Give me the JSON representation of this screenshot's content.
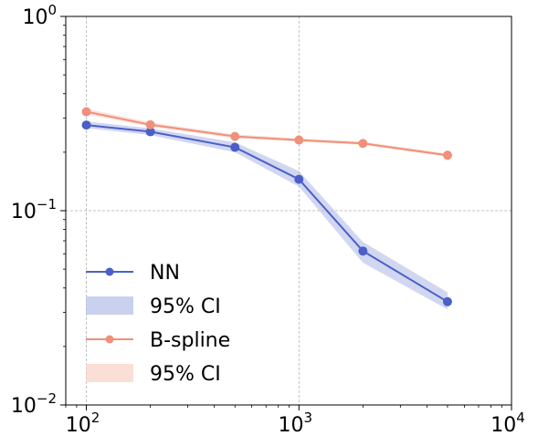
{
  "chart_data": {
    "type": "line",
    "xscale": "log",
    "yscale": "log",
    "xlim": [
      80,
      10000
    ],
    "ylim": [
      0.01,
      1.0
    ],
    "grid": true,
    "legend_position": "lower-left",
    "x_ticks": [
      {
        "value": 100,
        "base": "10",
        "exp": "2"
      },
      {
        "value": 1000,
        "base": "10",
        "exp": "3"
      },
      {
        "value": 10000,
        "base": "10",
        "exp": "4"
      }
    ],
    "y_ticks": [
      {
        "value": 0.01,
        "base": "10",
        "exp": "−2"
      },
      {
        "value": 0.1,
        "base": "10",
        "exp": "−1"
      },
      {
        "value": 1.0,
        "base": "10",
        "exp": "0"
      }
    ],
    "x": [
      100,
      200,
      500,
      1000,
      2000,
      5000
    ],
    "series": [
      {
        "name": "NN",
        "band_name": "95% CI",
        "color": "#4c5fc7",
        "band_color": "#b8c2ea",
        "values": [
          0.276,
          0.255,
          0.212,
          0.145,
          0.062,
          0.034
        ],
        "lower": [
          0.266,
          0.245,
          0.2,
          0.133,
          0.054,
          0.031
        ],
        "upper": [
          0.288,
          0.265,
          0.225,
          0.16,
          0.069,
          0.038
        ]
      },
      {
        "name": "B-spline",
        "band_name": "95% CI",
        "color": "#f0907a",
        "band_color": "#f8d4ca",
        "values": [
          0.323,
          0.277,
          0.241,
          0.231,
          0.222,
          0.193
        ],
        "lower": [
          0.313,
          0.27,
          0.236,
          0.227,
          0.218,
          0.189
        ],
        "upper": [
          0.335,
          0.285,
          0.247,
          0.236,
          0.227,
          0.197
        ]
      }
    ]
  }
}
